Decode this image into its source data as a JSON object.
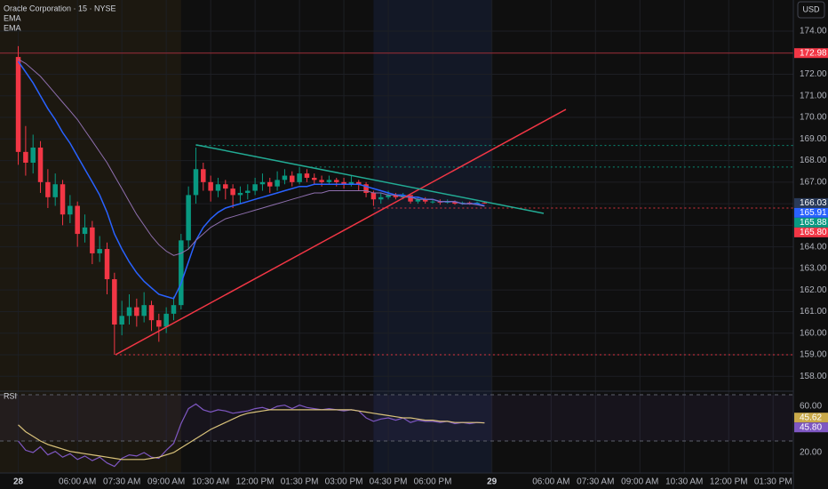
{
  "chart_data": {
    "type": "candlestick",
    "title": "Oracle Corporation · 15 · NYSE",
    "y_axis_unit": "USD",
    "up_color": "#089981",
    "down_color": "#f23645",
    "grid": true,
    "xlim": [
      -37,
      1571
    ],
    "xticks": [
      {
        "value": 0,
        "label": "28"
      },
      {
        "value": 120,
        "label": "06:00 AM"
      },
      {
        "value": 210,
        "label": "07:30 AM"
      },
      {
        "value": 300,
        "label": "09:00 AM"
      },
      {
        "value": 390,
        "label": "10:30 AM"
      },
      {
        "value": 480,
        "label": "12:00 PM"
      },
      {
        "value": 570,
        "label": "01:30 PM"
      },
      {
        "value": 660,
        "label": "03:00 PM"
      },
      {
        "value": 750,
        "label": "04:30 PM"
      },
      {
        "value": 840,
        "label": "06:00 PM"
      },
      {
        "value": 960,
        "label": "29"
      },
      {
        "value": 1080,
        "label": "06:00 AM"
      },
      {
        "value": 1170,
        "label": "07:30 AM"
      },
      {
        "value": 1260,
        "label": "09:00 AM"
      },
      {
        "value": 1350,
        "label": "10:30 AM"
      },
      {
        "value": 1440,
        "label": "12:00 PM"
      },
      {
        "value": 1530,
        "label": "01:30 PM"
      }
    ],
    "ylim": [
      157.31,
      175.44
    ],
    "yticks": [
      {
        "value": 174,
        "label": "174.00"
      },
      {
        "value": 173,
        "label": "173.00"
      },
      {
        "value": 172,
        "label": "172.00"
      },
      {
        "value": 171,
        "label": "171.00"
      },
      {
        "value": 170,
        "label": "170.00"
      },
      {
        "value": 169,
        "label": "169.00"
      },
      {
        "value": 168,
        "label": "168.00"
      },
      {
        "value": 167,
        "label": "167.00"
      },
      {
        "value": 166,
        "label": "166.00"
      },
      {
        "value": 165,
        "label": "165.00"
      },
      {
        "value": 164,
        "label": "164.00"
      },
      {
        "value": 163,
        "label": "163.00"
      },
      {
        "value": 162,
        "label": "162.00"
      },
      {
        "value": 161,
        "label": "161.00"
      },
      {
        "value": 160,
        "label": "160.00"
      },
      {
        "value": 159,
        "label": "159.00"
      },
      {
        "value": 158,
        "label": "158.00"
      }
    ],
    "sessions": [
      {
        "range": [
          -37,
          330
        ],
        "color": "#1c1810"
      },
      {
        "range": [
          720,
          960
        ],
        "color": "#131826"
      }
    ],
    "x": [
      0,
      15,
      30,
      45,
      60,
      75,
      90,
      105,
      120,
      135,
      150,
      165,
      180,
      195,
      210,
      225,
      240,
      255,
      270,
      285,
      300,
      315,
      330,
      345,
      360,
      375,
      390,
      405,
      420,
      435,
      450,
      465,
      480,
      495,
      510,
      525,
      540,
      555,
      570,
      585,
      600,
      615,
      630,
      645,
      660,
      675,
      690,
      705,
      720,
      735,
      750,
      765,
      780,
      795,
      810,
      825,
      840,
      855,
      870,
      885,
      900,
      915,
      930,
      945
    ],
    "open": [
      172.8,
      168.4,
      167.9,
      168.6,
      167.0,
      166.3,
      166.9,
      165.5,
      165.9,
      164.6,
      164.9,
      163.7,
      163.9,
      162.5,
      160.4,
      160.8,
      161.2,
      160.8,
      161.3,
      160.6,
      160.3,
      160.9,
      161.3,
      164.3,
      166.4,
      167.6,
      167.0,
      166.6,
      166.9,
      166.7,
      166.4,
      166.5,
      166.6,
      166.9,
      167.0,
      166.8,
      167.1,
      167.3,
      167.0,
      167.4,
      167.2,
      167.1,
      167.0,
      167.1,
      167.0,
      166.9,
      167.0,
      166.9,
      166.5,
      166.2,
      166.3,
      166.4,
      166.3,
      166.4,
      166.1,
      166.2,
      166.1,
      166.1,
      166.05,
      166.1,
      166.0,
      166.05,
      166.0,
      166.05
    ],
    "high": [
      173.3,
      169.6,
      169.2,
      168.9,
      167.6,
      167.4,
      167.1,
      166.4,
      166.1,
      165.5,
      165.2,
      164.5,
      164.2,
      162.8,
      161.5,
      161.8,
      161.6,
      161.9,
      161.5,
      160.9,
      161.2,
      161.7,
      164.6,
      166.8,
      168.6,
      167.9,
      167.3,
      167.2,
      167.1,
      166.9,
      166.8,
      166.9,
      167.2,
      167.4,
      167.2,
      167.5,
      167.6,
      167.5,
      167.7,
      167.6,
      167.4,
      167.3,
      167.3,
      167.2,
      167.2,
      167.3,
      167.1,
      167.0,
      166.6,
      166.5,
      166.6,
      166.5,
      166.5,
      166.4,
      166.3,
      166.3,
      166.2,
      166.2,
      166.2,
      166.15,
      166.1,
      166.1,
      166.1,
      166.1
    ],
    "low": [
      167.8,
      167.3,
      167.4,
      166.5,
      165.8,
      165.9,
      165.0,
      165.1,
      164.0,
      164.2,
      163.2,
      163.3,
      161.8,
      159.0,
      159.9,
      160.4,
      160.3,
      160.5,
      160.1,
      159.6,
      160.0,
      160.6,
      161.1,
      163.9,
      166.0,
      166.6,
      166.1,
      166.3,
      166.2,
      165.8,
      166.0,
      166.2,
      166.4,
      166.6,
      166.5,
      166.6,
      166.9,
      166.8,
      166.9,
      167.0,
      166.9,
      166.8,
      166.9,
      166.8,
      166.7,
      166.8,
      166.6,
      166.3,
      165.9,
      166.0,
      166.2,
      166.2,
      166.2,
      166.0,
      166.0,
      166.0,
      166.0,
      165.95,
      166.0,
      165.95,
      165.95,
      165.95,
      165.95,
      166.0
    ],
    "close": [
      168.4,
      167.9,
      168.6,
      167.0,
      166.3,
      166.9,
      165.5,
      165.9,
      164.6,
      164.9,
      163.7,
      163.9,
      162.5,
      160.4,
      160.8,
      161.2,
      160.8,
      161.3,
      160.6,
      160.3,
      160.9,
      161.3,
      164.3,
      166.4,
      167.6,
      167.0,
      166.6,
      166.9,
      166.7,
      166.4,
      166.5,
      166.6,
      166.9,
      167.0,
      166.8,
      167.1,
      167.3,
      167.0,
      167.4,
      167.2,
      167.1,
      167.0,
      167.1,
      167.0,
      166.9,
      167.0,
      166.9,
      166.5,
      166.2,
      166.3,
      166.4,
      166.3,
      166.4,
      166.1,
      166.2,
      166.1,
      166.1,
      166.05,
      166.1,
      166.0,
      166.05,
      166.0,
      166.05,
      166.03
    ],
    "series": [
      {
        "name": "EMA",
        "color": "#2962ff",
        "values": [
          172.6,
          172.1,
          171.6,
          171.0,
          170.4,
          169.9,
          169.3,
          168.8,
          168.2,
          167.6,
          167.0,
          166.4,
          165.6,
          164.6,
          163.9,
          163.3,
          162.8,
          162.4,
          162.1,
          161.8,
          161.7,
          161.6,
          162.3,
          163.3,
          164.3,
          164.9,
          165.3,
          165.6,
          165.8,
          165.9,
          166.0,
          166.1,
          166.2,
          166.3,
          166.4,
          166.5,
          166.6,
          166.7,
          166.8,
          166.8,
          166.9,
          166.9,
          166.9,
          166.9,
          166.9,
          166.9,
          166.9,
          166.8,
          166.7,
          166.6,
          166.5,
          166.4,
          166.4,
          166.3,
          166.3,
          166.2,
          166.2,
          166.1,
          166.1,
          166.1,
          166.0,
          166.0,
          166.0,
          165.91
        ]
      },
      {
        "name": "EMA",
        "color": "#8e6fae",
        "values": [
          172.7,
          172.5,
          172.2,
          171.9,
          171.5,
          171.1,
          170.7,
          170.3,
          169.9,
          169.4,
          168.9,
          168.4,
          167.9,
          167.3,
          166.7,
          166.1,
          165.5,
          165.0,
          164.5,
          164.1,
          163.8,
          163.6,
          163.7,
          163.9,
          164.3,
          164.6,
          164.9,
          165.1,
          165.3,
          165.4,
          165.5,
          165.6,
          165.7,
          165.8,
          165.9,
          166.0,
          166.1,
          166.2,
          166.3,
          166.4,
          166.5,
          166.5,
          166.6,
          166.6,
          166.6,
          166.6,
          166.6,
          166.6,
          166.5,
          166.5,
          166.4,
          166.4,
          166.3,
          166.3,
          166.2,
          166.2,
          166.2,
          166.1,
          166.1,
          166.1,
          166.0,
          166.0,
          165.95,
          165.88
        ]
      }
    ],
    "trendlines": [
      {
        "color": "#f23645",
        "x": [
          197,
          1110
        ],
        "y": [
          159.0,
          170.37
        ]
      },
      {
        "color": "#22ab94",
        "x": [
          360,
          1065
        ],
        "y": [
          168.73,
          165.55
        ]
      }
    ],
    "levels": [
      {
        "value": 172.98,
        "color": "#f23645",
        "from": -37,
        "style": "solid"
      },
      {
        "value": 168.7,
        "color": "#089981",
        "from": 360,
        "style": "dotted"
      },
      {
        "value": 167.7,
        "color": "#089981",
        "from": 593,
        "style": "dotted"
      },
      {
        "value": 165.8,
        "color": "#f23645",
        "from": 720,
        "style": "dotted"
      },
      {
        "value": 159.0,
        "color": "#f23645",
        "from": 197,
        "style": "dotted"
      }
    ],
    "badges": [
      {
        "value": 172.98,
        "color": "#f23645"
      },
      {
        "value": 166.03,
        "color": "#2a3a58"
      },
      {
        "value": 165.91,
        "color": "#2962ff"
      },
      {
        "value": 165.88,
        "color": "#089981"
      },
      {
        "value": 165.8,
        "label": "165.80",
        "color": "#f23645"
      }
    ],
    "rsi": {
      "title": "RSI",
      "ylim": [
        2.3,
        73.1
      ],
      "yticks": [
        {
          "value": 60,
          "label": "60.00"
        },
        {
          "value": 20,
          "label": "20.00"
        }
      ],
      "hlines": [
        70,
        30
      ],
      "series": [
        {
          "color": "#7e57c2",
          "values": [
            30,
            22,
            20,
            25,
            18,
            21,
            16,
            19,
            14,
            17,
            13,
            16,
            11,
            8,
            15,
            18,
            17,
            20,
            16,
            15,
            22,
            28,
            45,
            58,
            62,
            57,
            55,
            57,
            56,
            54,
            55,
            56,
            58,
            59,
            57,
            60,
            61,
            58,
            61,
            59,
            58,
            57,
            58,
            57,
            56,
            57,
            56,
            50,
            47,
            49,
            50,
            48,
            50,
            46,
            48,
            47,
            47,
            46,
            47,
            45,
            46,
            45,
            46,
            45.8
          ]
        },
        {
          "color": "#d9c27a",
          "values": [
            44,
            38,
            34,
            30,
            27,
            25,
            23,
            21,
            20,
            19,
            18,
            17,
            16,
            15,
            14,
            14,
            14,
            14,
            15,
            16,
            18,
            20,
            24,
            28,
            32,
            36,
            40,
            43,
            46,
            49,
            52,
            54,
            55,
            56,
            57,
            57,
            57,
            57,
            57,
            57,
            57,
            57,
            57,
            57,
            57,
            57,
            56,
            55,
            54,
            53,
            52,
            51,
            50,
            50,
            49,
            48,
            48,
            47,
            47,
            46,
            46,
            46,
            46,
            45.62
          ]
        }
      ],
      "badges": [
        {
          "value": 45.62,
          "color": "#c9a94a"
        },
        {
          "value": 45.8,
          "label": "45.80",
          "color": "#7e57c2"
        }
      ]
    }
  }
}
